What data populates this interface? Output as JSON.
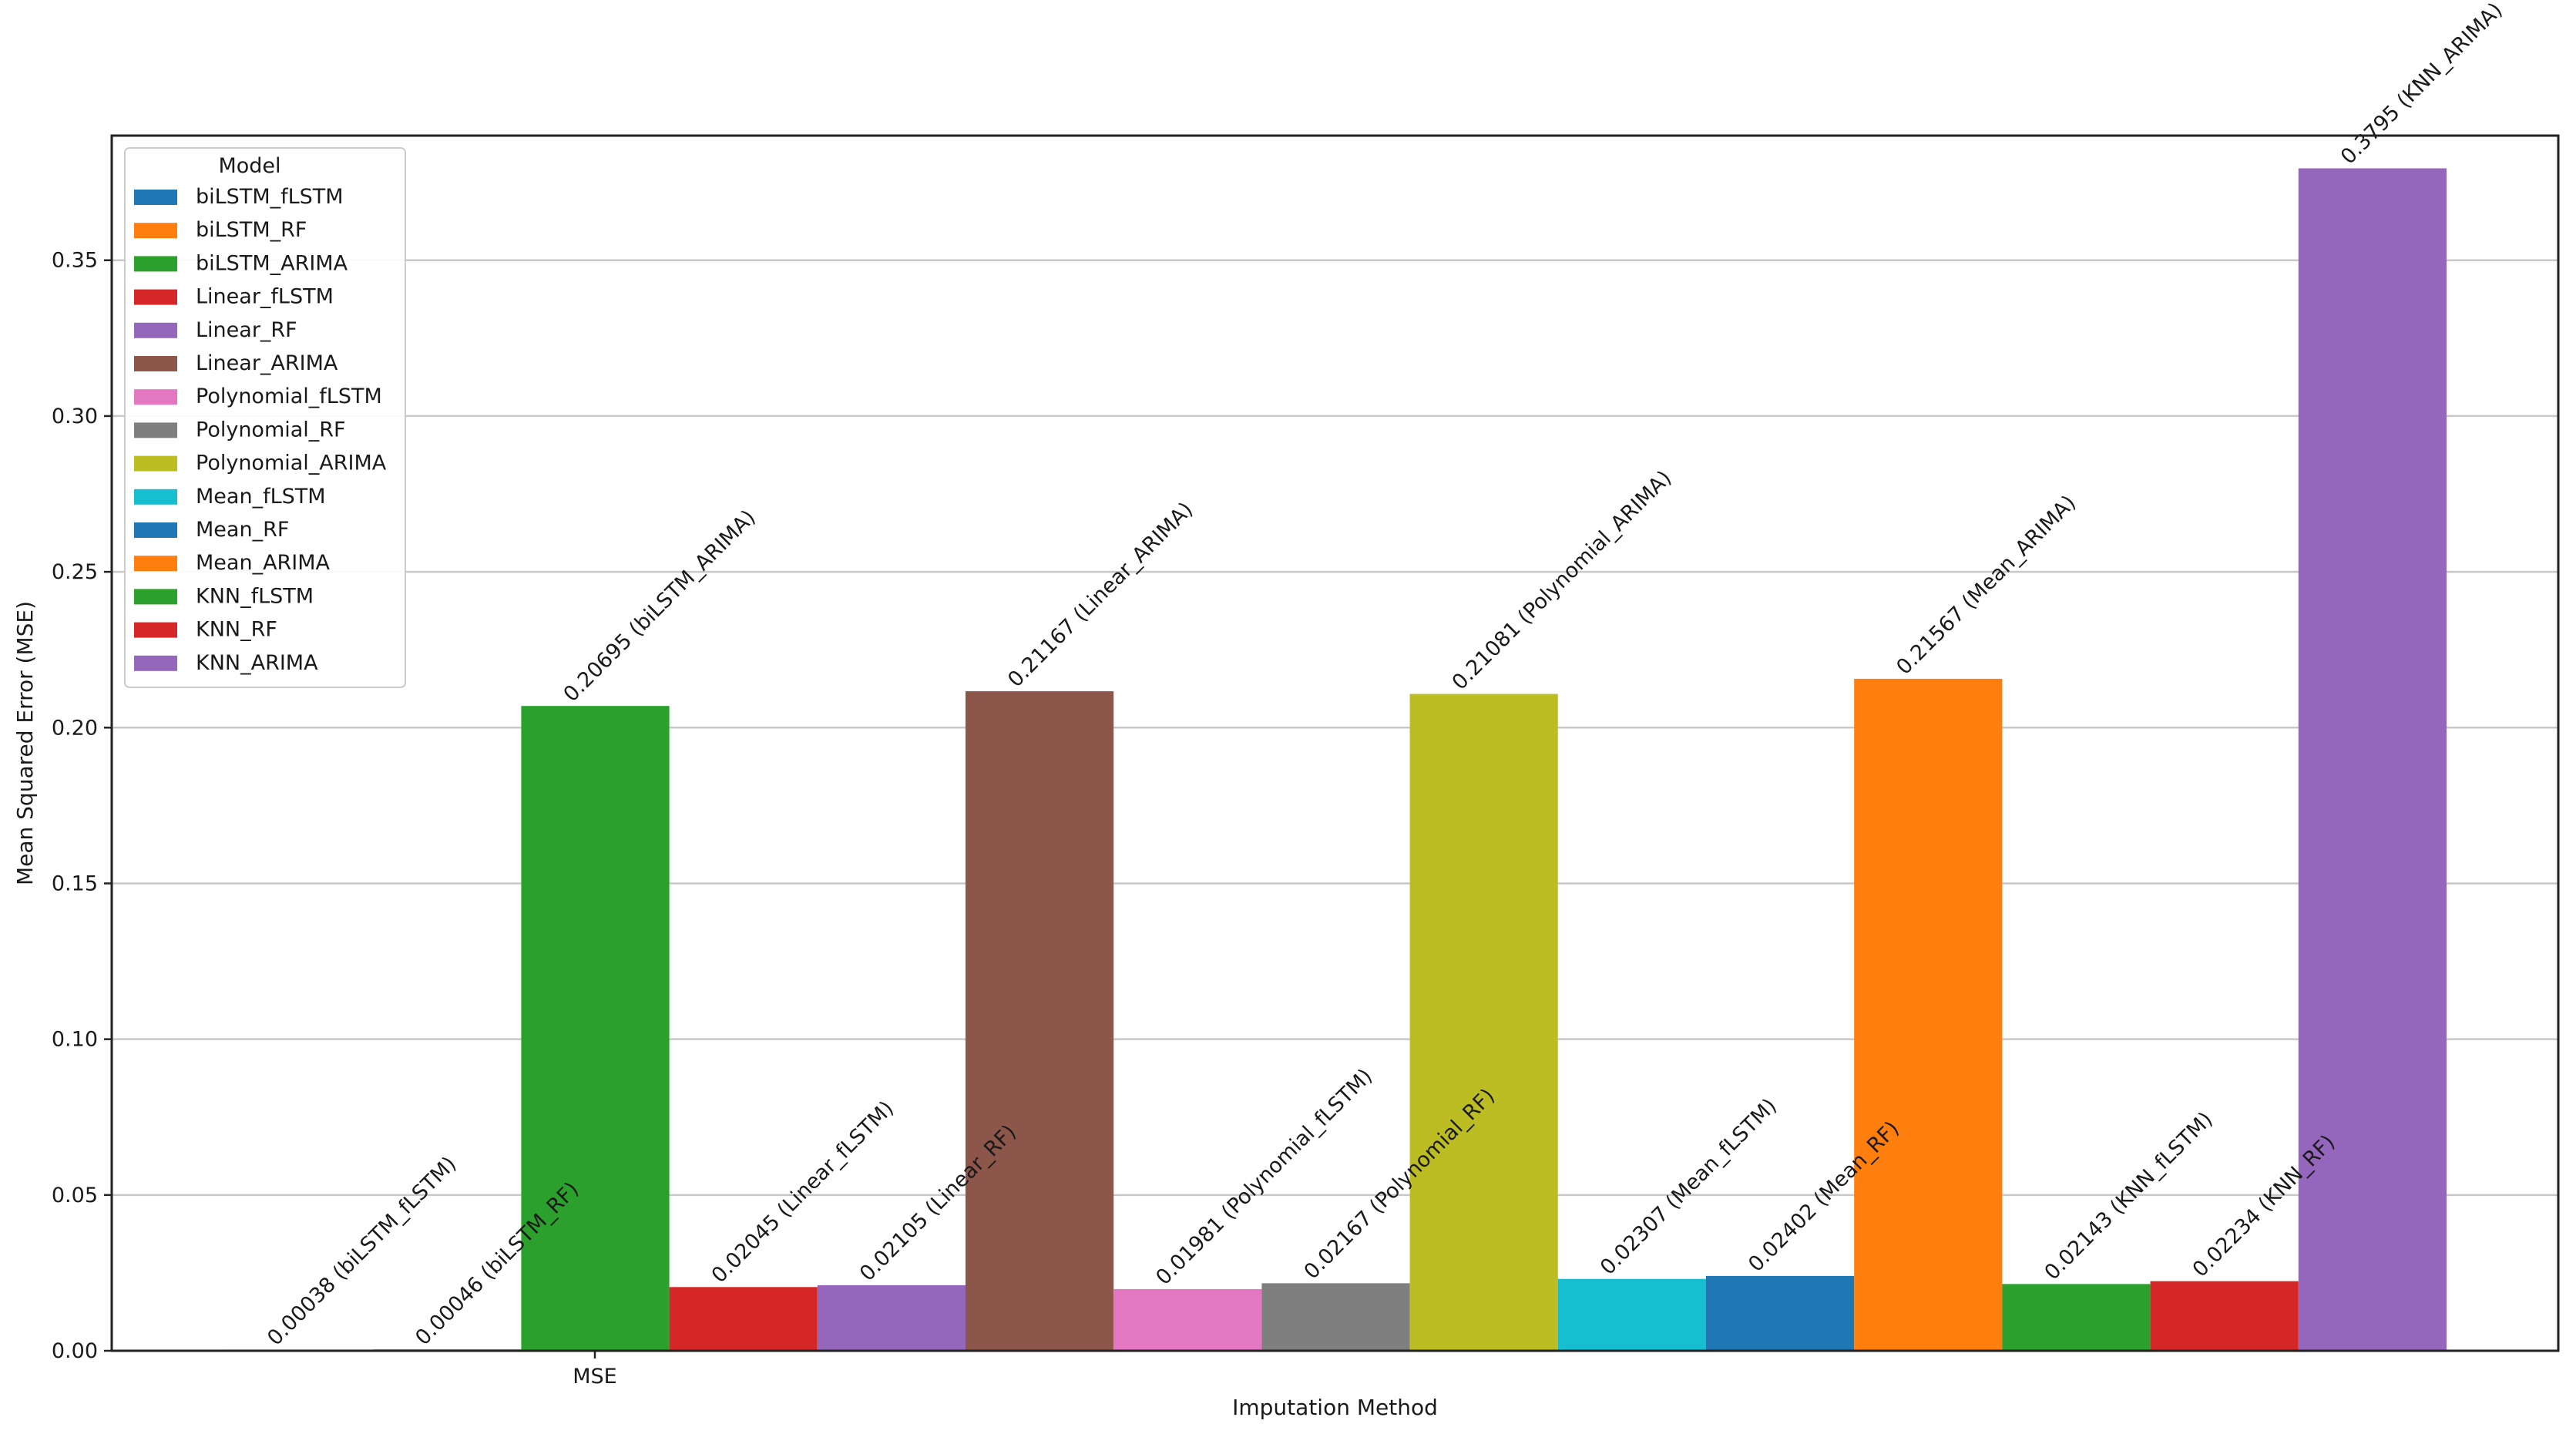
{
  "chart_data": {
    "type": "bar",
    "title": "",
    "xlabel": "Imputation Method",
    "ylabel": "Mean Squared Error (MSE)",
    "categories": [
      "MSE"
    ],
    "ylim": [
      0,
      0.39
    ],
    "yticks": [
      0.0,
      0.05,
      0.1,
      0.15,
      0.2,
      0.25,
      0.3,
      0.35
    ],
    "ytick_labels": [
      "0.00",
      "0.05",
      "0.10",
      "0.15",
      "0.20",
      "0.25",
      "0.30",
      "0.35"
    ],
    "grid": "horizontal",
    "legend": {
      "title": "Model",
      "position": "top-left"
    },
    "series": [
      {
        "name": "biLSTM_fLSTM",
        "value": 0.00038,
        "color": "#1f77b4",
        "label": "0.00038 (biLSTM_fLSTM)"
      },
      {
        "name": "biLSTM_RF",
        "value": 0.00046,
        "color": "#ff7f0e",
        "label": "0.00046 (biLSTM_RF)"
      },
      {
        "name": "biLSTM_ARIMA",
        "value": 0.20695,
        "color": "#2ca02c",
        "label": "0.20695 (biLSTM_ARIMA)"
      },
      {
        "name": "Linear_fLSTM",
        "value": 0.02045,
        "color": "#d62728",
        "label": "0.02045 (Linear_fLSTM)"
      },
      {
        "name": "Linear_RF",
        "value": 0.02105,
        "color": "#9467bd",
        "label": "0.02105 (Linear_RF)"
      },
      {
        "name": "Linear_ARIMA",
        "value": 0.21167,
        "color": "#8c564b",
        "label": "0.21167 (Linear_ARIMA)"
      },
      {
        "name": "Polynomial_fLSTM",
        "value": 0.01981,
        "color": "#e377c2",
        "label": "0.01981 (Polynomial_fLSTM)"
      },
      {
        "name": "Polynomial_RF",
        "value": 0.02167,
        "color": "#7f7f7f",
        "label": "0.02167 (Polynomial_RF)"
      },
      {
        "name": "Polynomial_ARIMA",
        "value": 0.21081,
        "color": "#bcbd22",
        "label": "0.21081 (Polynomial_ARIMA)"
      },
      {
        "name": "Mean_fLSTM",
        "value": 0.02307,
        "color": "#17becf",
        "label": "0.02307 (Mean_fLSTM)"
      },
      {
        "name": "Mean_RF",
        "value": 0.02402,
        "color": "#1f77b4",
        "label": "0.02402 (Mean_RF)"
      },
      {
        "name": "Mean_ARIMA",
        "value": 0.21567,
        "color": "#ff7f0e",
        "label": "0.21567 (Mean_ARIMA)"
      },
      {
        "name": "KNN_fLSTM",
        "value": 0.02143,
        "color": "#2ca02c",
        "label": "0.02143 (KNN_fLSTM)"
      },
      {
        "name": "KNN_RF",
        "value": 0.02234,
        "color": "#d62728",
        "label": "0.02234 (KNN_RF)"
      },
      {
        "name": "KNN_ARIMA",
        "value": 0.3795,
        "color": "#9467bd",
        "label": "0.3795 (KNN_ARIMA)"
      }
    ]
  }
}
